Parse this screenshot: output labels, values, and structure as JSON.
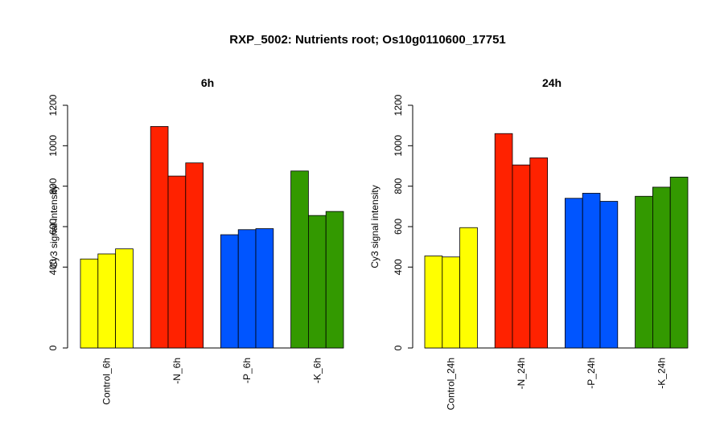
{
  "title": "RXP_5002: Nutrients root; Os10g0110600_17751",
  "chart_data": [
    {
      "type": "bar",
      "title": "6h",
      "ylabel": "Cy3 signal intensity",
      "ylim": [
        0,
        1200
      ],
      "yticks": [
        0,
        400,
        600,
        800,
        1000,
        1200
      ],
      "groups": [
        {
          "label": "Control_6h",
          "color": "#FFFF00",
          "values": [
            440,
            465,
            490
          ]
        },
        {
          "label": "-N_6h",
          "color": "#FF2200",
          "values": [
            1095,
            850,
            915
          ]
        },
        {
          "label": "-P_6h",
          "color": "#0055FF",
          "values": [
            560,
            585,
            590
          ]
        },
        {
          "label": "-K_6h",
          "color": "#339900",
          "values": [
            875,
            655,
            675
          ]
        }
      ]
    },
    {
      "type": "bar",
      "title": "24h",
      "ylabel": "Cy3 signal intensity",
      "ylim": [
        0,
        1200
      ],
      "yticks": [
        0,
        400,
        600,
        800,
        1000,
        1200
      ],
      "groups": [
        {
          "label": "Control_24h",
          "color": "#FFFF00",
          "values": [
            455,
            450,
            595
          ]
        },
        {
          "label": "-N_24h",
          "color": "#FF2200",
          "values": [
            1060,
            905,
            940
          ]
        },
        {
          "label": "-P_24h",
          "color": "#0055FF",
          "values": [
            740,
            765,
            725
          ]
        },
        {
          "label": "-K_24h",
          "color": "#339900",
          "values": [
            750,
            795,
            845
          ]
        }
      ]
    }
  ]
}
